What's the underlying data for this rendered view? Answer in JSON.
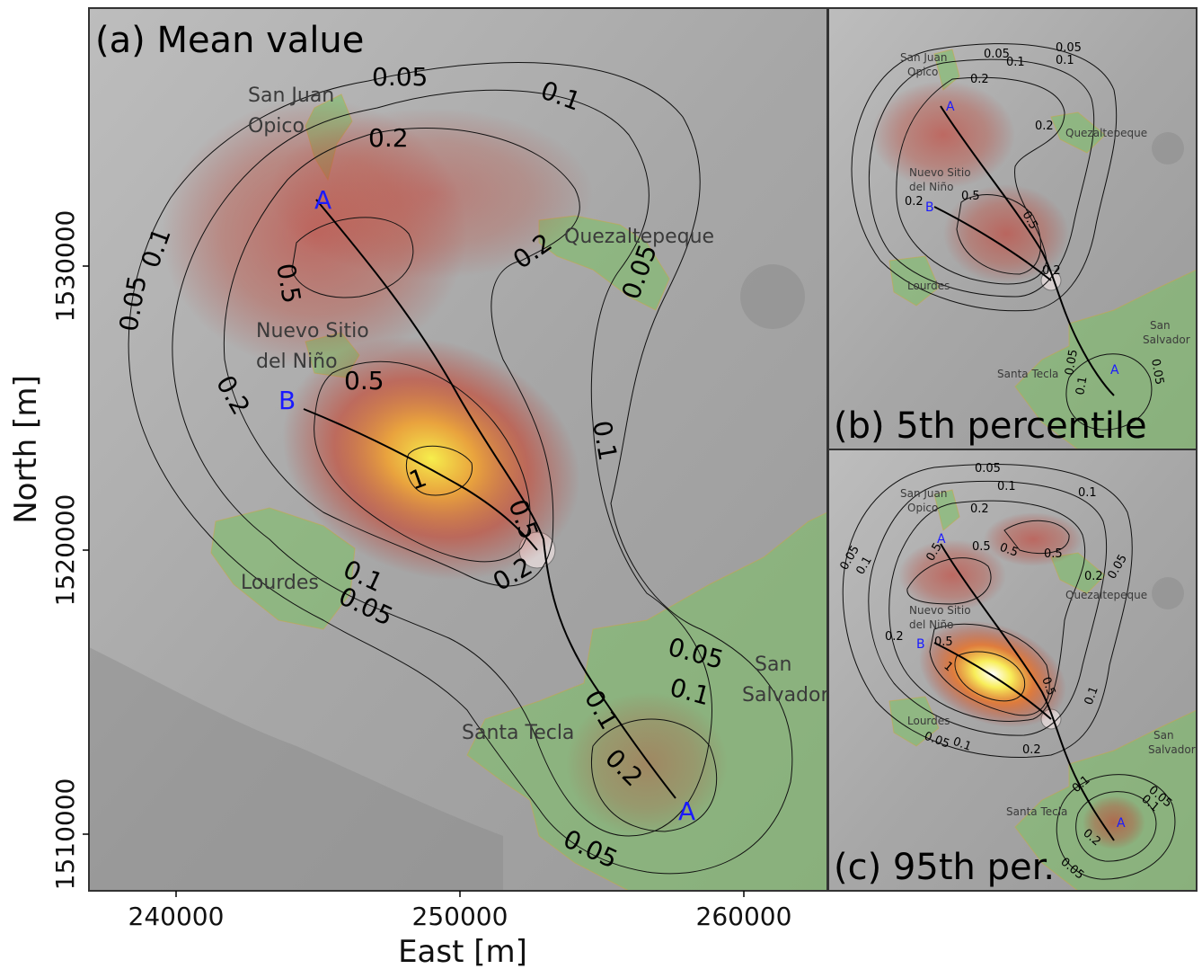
{
  "axes": {
    "xlabel": "East [m]",
    "ylabel": "North [m]",
    "xticks": [
      "240000",
      "250000",
      "260000"
    ],
    "yticks": [
      "1530000",
      "1520000",
      "1510000"
    ]
  },
  "panels": {
    "a": {
      "title": "(a) Mean value",
      "towns": {
        "sjo1": "San Juan",
        "sjo2": "Opico",
        "quez": "Quezaltepeque",
        "nsn1": "Nuevo Sitio",
        "nsn2": "del Niño",
        "lourdes": "Lourdes",
        "tecla": "Santa Tecla",
        "ss1": "San",
        "ss2": "Salvador"
      },
      "contours": [
        "0.05",
        "0.1",
        "0.2",
        "0.5",
        "1"
      ],
      "labels": {
        "A": "A",
        "B": "B"
      }
    },
    "b": {
      "title": "(b) 5th percentile",
      "towns": {
        "sjo1": "San Juan",
        "sjo2": "Opico",
        "quez": "Quezaltepeque",
        "nsn1": "Nuevo Sitio",
        "nsn2": "del Niño",
        "lourdes": "Lourdes",
        "tecla": "Santa Tecla",
        "ss1": "San",
        "ss2": "Salvador"
      },
      "contours": [
        "0.05",
        "0.1",
        "0.2",
        "0.5"
      ],
      "labels": {
        "A": "A",
        "B": "B"
      }
    },
    "c": {
      "title": "(c) 95th per.",
      "towns": {
        "sjo1": "San Juan",
        "sjo2": "Opico",
        "quez": "Quezaltepeque",
        "nsn1": "Nuevo Sitio",
        "nsn2": "del Niño",
        "lourdes": "Lourdes",
        "tecla": "Santa Tecla",
        "ss1": "San",
        "ss2": "Salvador"
      },
      "contours": [
        "0.05",
        "0.1",
        "0.2",
        "0.5",
        "1"
      ],
      "labels": {
        "A": "A",
        "B": "B"
      }
    }
  },
  "colors": {
    "hot_low": "#b8322a",
    "hot_mid": "#e8742a",
    "hot_high": "#f4e04a",
    "town_fill": "#7fbf6a",
    "relief": "#a9a9a9"
  }
}
